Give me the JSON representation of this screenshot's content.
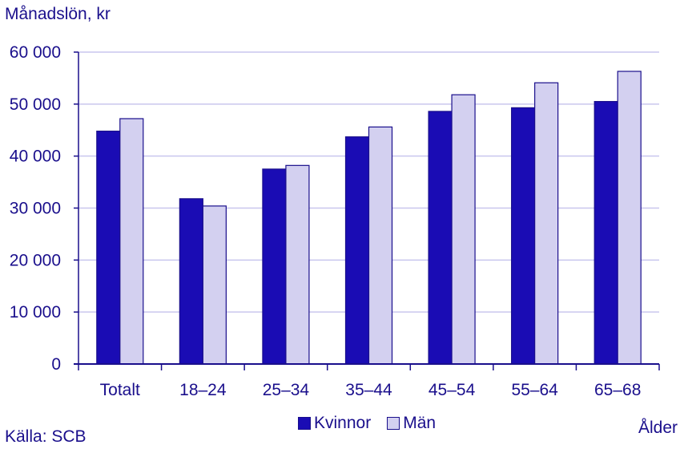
{
  "chart_data": {
    "type": "bar",
    "ylabel": "Månadslön, kr",
    "xlabel": "Ålder",
    "source": "Källa: SCB",
    "categories": [
      "Totalt",
      "18–24",
      "25–34",
      "35–44",
      "45–54",
      "55–64",
      "65–68"
    ],
    "series": [
      {
        "name": "Kvinnor",
        "color": "#1a0cb4",
        "values": [
          44800,
          31800,
          37500,
          43700,
          48600,
          49300,
          50500
        ]
      },
      {
        "name": "Män",
        "color": "#d3d0f0",
        "values": [
          47200,
          30400,
          38200,
          45600,
          51800,
          54100,
          56300
        ]
      }
    ],
    "ylim": [
      0,
      60000
    ],
    "yticks": [
      0,
      10000,
      20000,
      30000,
      40000,
      50000,
      60000
    ],
    "ytick_labels": [
      "0",
      "10 000",
      "20 000",
      "30 000",
      "40 000",
      "50 000",
      "60 000"
    ],
    "grid": true,
    "legend_position": "bottom-center",
    "axis_color": "#1a0f8c",
    "grid_color": "#c9c6ee"
  }
}
